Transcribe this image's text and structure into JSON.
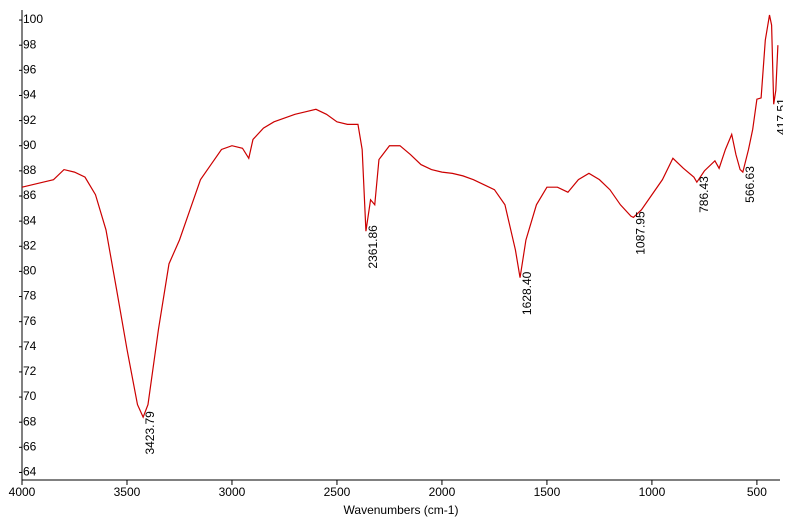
{
  "chart_data": {
    "type": "line",
    "x_label": "Wavenumbers (cm-1)",
    "xlim": [
      4000,
      390
    ],
    "ylim": [
      63.4,
      100.8
    ],
    "xticks": [
      4000,
      3500,
      3000,
      2500,
      2000,
      1500,
      1000,
      500
    ],
    "yticks": [
      64,
      66,
      68,
      70,
      72,
      74,
      76,
      78,
      80,
      82,
      84,
      86,
      88,
      90,
      92,
      94,
      96,
      98,
      100
    ],
    "x": [
      4000,
      3950,
      3900,
      3850,
      3800,
      3750,
      3700,
      3650,
      3600,
      3550,
      3500,
      3450,
      3423,
      3400,
      3350,
      3300,
      3250,
      3200,
      3150,
      3100,
      3050,
      3000,
      2950,
      2920,
      2900,
      2850,
      2800,
      2750,
      2700,
      2650,
      2600,
      2550,
      2500,
      2450,
      2400,
      2380,
      2362,
      2340,
      2320,
      2300,
      2250,
      2200,
      2150,
      2100,
      2050,
      2000,
      1950,
      1900,
      1850,
      1800,
      1750,
      1700,
      1650,
      1628,
      1600,
      1550,
      1500,
      1450,
      1400,
      1350,
      1300,
      1250,
      1200,
      1150,
      1100,
      1088,
      1050,
      1000,
      950,
      900,
      850,
      800,
      786,
      750,
      700,
      680,
      650,
      620,
      600,
      580,
      567,
      540,
      520,
      500,
      480,
      460,
      440,
      430,
      420,
      410,
      400
    ],
    "series": [
      {
        "color": "#cc0000",
        "values": [
          86.7,
          86.9,
          87.1,
          87.3,
          88.1,
          87.9,
          87.5,
          86.1,
          83.3,
          78.6,
          73.8,
          69.4,
          68.4,
          69.4,
          75.4,
          80.6,
          82.5,
          84.9,
          87.3,
          88.5,
          89.7,
          90.0,
          89.8,
          89.0,
          90.5,
          91.4,
          91.9,
          92.2,
          92.5,
          92.7,
          92.9,
          92.5,
          91.9,
          91.7,
          91.7,
          89.7,
          83.2,
          85.7,
          85.3,
          88.9,
          90.0,
          90.0,
          89.3,
          88.5,
          88.1,
          87.9,
          87.8,
          87.6,
          87.3,
          86.9,
          86.5,
          85.3,
          81.7,
          79.5,
          82.5,
          85.3,
          86.7,
          86.7,
          86.3,
          87.3,
          87.8,
          87.3,
          86.5,
          85.3,
          84.4,
          84.3,
          84.9,
          86.1,
          87.3,
          89.0,
          88.2,
          87.5,
          87.1,
          88.0,
          88.8,
          88.2,
          89.7,
          90.9,
          89.3,
          88.1,
          87.9,
          89.7,
          91.3,
          93.7,
          93.8,
          98.4,
          100.4,
          99.6,
          93.3,
          94.4,
          98.0
        ]
      }
    ],
    "annotations": [
      {
        "text": "3423.79",
        "x": 3423.79,
        "y": 68.4
      },
      {
        "text": "2361.86",
        "x": 2361.86,
        "y": 83.2
      },
      {
        "text": "1628.40",
        "x": 1628.4,
        "y": 79.5
      },
      {
        "text": "1087.95",
        "x": 1087.95,
        "y": 84.3
      },
      {
        "text": "786.43",
        "x": 786.43,
        "y": 87.1
      },
      {
        "text": "566.63",
        "x": 566.63,
        "y": 87.9
      },
      {
        "text": "417.51",
        "x": 417.51,
        "y": 93.3
      }
    ]
  }
}
